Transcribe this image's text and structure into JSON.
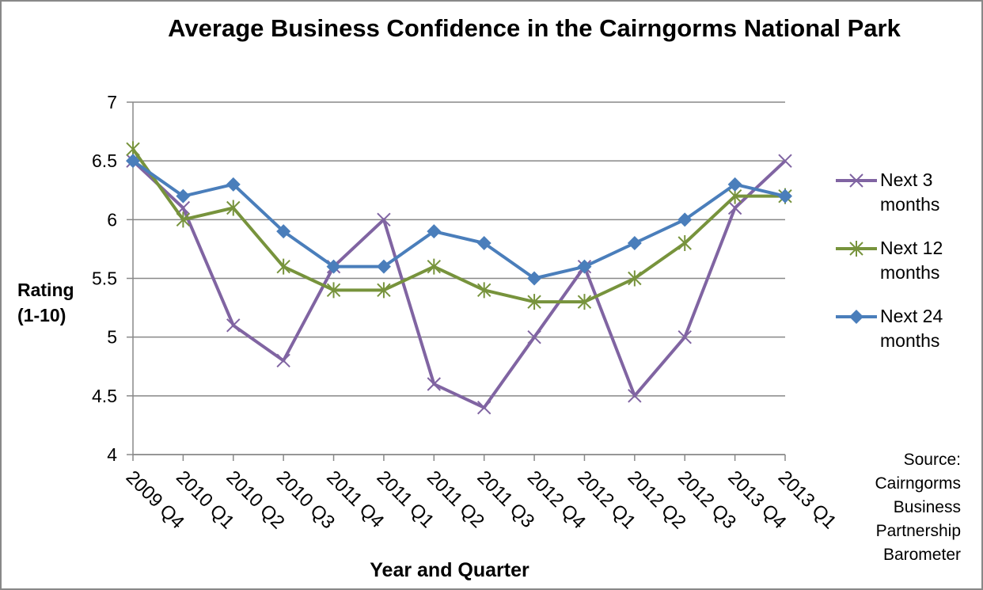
{
  "chart_data": {
    "type": "line",
    "title": "Average Business Confidence in the Cairngorms National Park",
    "x_label": "Year and Quarter",
    "y_label": "Rating (1-10)",
    "annotation": "Source: Cairngorms Business Partnership Barometer",
    "categories": [
      "2009 Q4",
      "2010 Q1",
      "2010 Q2",
      "2010 Q3",
      "2011 Q4",
      "2011 Q1",
      "2011 Q2",
      "2011 Q3",
      "2012 Q4",
      "2012 Q1",
      "2012 Q2",
      "2012 Q3",
      "2013 Q4",
      "2013 Q1"
    ],
    "series": [
      {
        "name": "Next 3 months",
        "color": "#8064a2",
        "marker": "x",
        "values": [
          6.5,
          6.1,
          5.1,
          4.8,
          5.6,
          6.0,
          4.6,
          4.4,
          5.0,
          5.6,
          4.5,
          5.0,
          6.1,
          6.5
        ]
      },
      {
        "name": "Next 12 months",
        "color": "#77933c",
        "marker": "star",
        "values": [
          6.6,
          6.0,
          6.1,
          5.6,
          5.4,
          5.4,
          5.6,
          5.4,
          5.3,
          5.3,
          5.5,
          5.8,
          6.2,
          6.2
        ]
      },
      {
        "name": "Next 24 months",
        "color": "#4a7ebb",
        "marker": "diamond",
        "values": [
          6.5,
          6.2,
          6.3,
          5.9,
          5.6,
          5.6,
          5.9,
          5.8,
          5.5,
          5.6,
          5.8,
          6.0,
          6.3,
          6.2
        ]
      }
    ],
    "ylim": [
      4,
      7
    ],
    "yticks": [
      4,
      4.5,
      5,
      5.5,
      6,
      6.5,
      7
    ],
    "grid": true,
    "legend": "right"
  }
}
